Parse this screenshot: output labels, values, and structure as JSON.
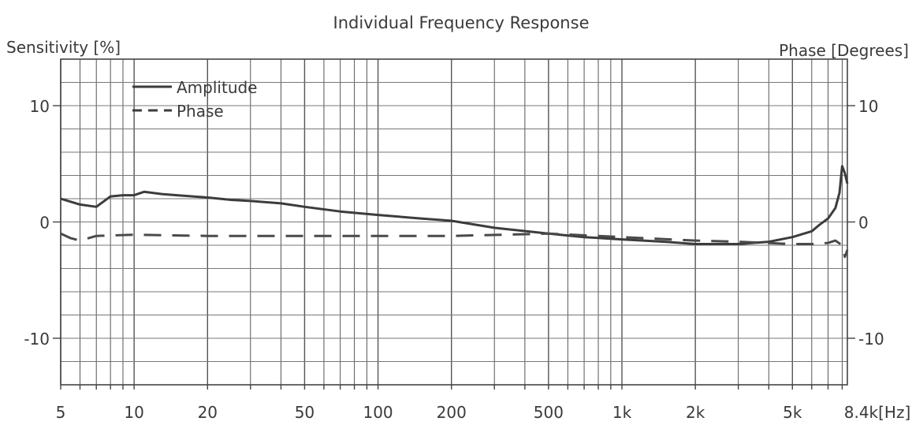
{
  "chart_data": {
    "type": "line",
    "title": "Individual Frequency Response",
    "ylabel_left": "Sensitivity [%]",
    "ylabel_right": "Phase [Degrees]",
    "x_scale": "log",
    "xlim": [
      5,
      8400
    ],
    "ylim": [
      -14,
      14
    ],
    "x_tick_values": [
      5,
      10,
      20,
      50,
      100,
      200,
      500,
      1000,
      2000,
      5000,
      8400
    ],
    "x_tick_labels": [
      "5",
      "10",
      "20",
      "50",
      "100",
      "200",
      "500",
      "1k",
      "2k",
      "5k",
      "8.4k[Hz]"
    ],
    "y_tick_values": [
      10,
      0,
      -10
    ],
    "y_tick_labels_left": [
      "10",
      "0",
      "-10"
    ],
    "y_tick_labels_right": [
      "10",
      "0",
      "-10"
    ],
    "grid": true,
    "legend_position": "top-left",
    "series": [
      {
        "name": "Amplitude",
        "style": "solid",
        "x": [
          5,
          6,
          7,
          8,
          9,
          10,
          11,
          13,
          15,
          20,
          25,
          30,
          40,
          50,
          70,
          100,
          150,
          200,
          300,
          500,
          700,
          1000,
          1500,
          2000,
          3000,
          4000,
          5000,
          6000,
          6500,
          7000,
          7500,
          7800,
          8000,
          8200,
          8400
        ],
        "y": [
          2.0,
          1.5,
          1.3,
          2.2,
          2.3,
          2.3,
          2.6,
          2.4,
          2.3,
          2.1,
          1.9,
          1.8,
          1.6,
          1.3,
          0.9,
          0.6,
          0.3,
          0.1,
          -0.5,
          -1.0,
          -1.3,
          -1.5,
          -1.7,
          -1.9,
          -1.9,
          -1.7,
          -1.3,
          -0.8,
          -0.2,
          0.3,
          1.2,
          2.5,
          4.8,
          4.2,
          3.3
        ]
      },
      {
        "name": "Phase",
        "style": "dashed",
        "x": [
          5,
          5.5,
          6,
          7,
          10,
          20,
          50,
          100,
          200,
          500,
          1000,
          2000,
          3000,
          5000,
          6000,
          7000,
          7500,
          8000,
          8200,
          8400
        ],
        "y": [
          -1.0,
          -1.4,
          -1.6,
          -1.2,
          -1.1,
          -1.2,
          -1.2,
          -1.2,
          -1.2,
          -1.0,
          -1.3,
          -1.6,
          -1.7,
          -1.9,
          -1.9,
          -1.8,
          -1.6,
          -2.0,
          -3.0,
          -2.4
        ]
      }
    ]
  }
}
